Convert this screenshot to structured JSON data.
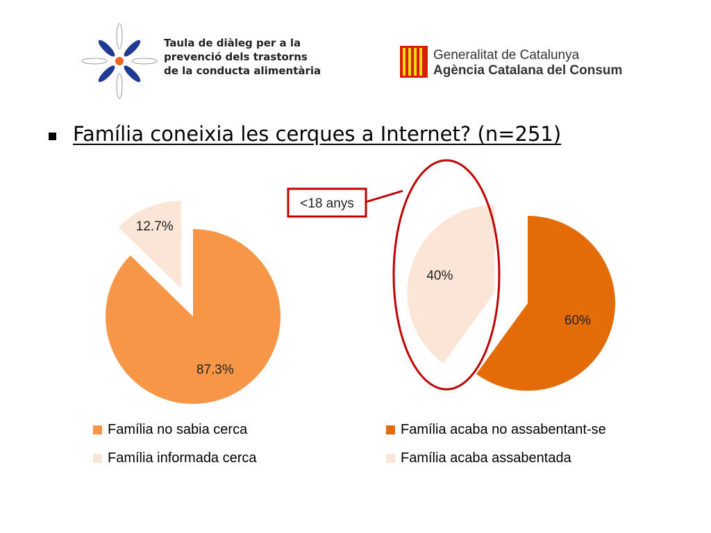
{
  "header": {
    "org_logo_text": "Taula de diàleg per a la\nprevenció dels trastorns\nde la conducta alimentària",
    "gov_name": "Generalitat de Catalunya",
    "agency_name": "Agència Catalana del Consum"
  },
  "heading": {
    "bullet": "▪",
    "title": "Família coneixia les cerques a Internet? (n=251)"
  },
  "colors": {
    "light_orange": "#f79646",
    "pale": "#fbe5d6",
    "dark_orange": "#e36c09",
    "highlight_red": "#c00000",
    "logo_blue": "#1f3a93",
    "logo_dot": "#f26522",
    "senyera_red": "#d81e05",
    "senyera_yellow": "#f9d616"
  },
  "chart_data": [
    {
      "type": "pie",
      "title": "",
      "slices": [
        {
          "label": "Família no sabia cerca",
          "value": 87.3,
          "value_label": "87.3%",
          "color": "#f79646",
          "exploded": false
        },
        {
          "label": "Família informada cerca",
          "value": 12.7,
          "value_label": "12.7%",
          "color": "#fbe5d6",
          "exploded": true
        }
      ],
      "legend": "bottom"
    },
    {
      "type": "pie",
      "title": "",
      "slices": [
        {
          "label": "Família acaba no assabentant-se",
          "value": 60,
          "value_label": "60%",
          "color": "#e36c09",
          "exploded": false
        },
        {
          "label": "Família acaba assabentada",
          "value": 40,
          "value_label": "40%",
          "color": "#fbe5d6",
          "exploded": true
        }
      ],
      "legend": "bottom",
      "annotation": {
        "text": "<18 anys",
        "target": "Família acaba assabentada"
      }
    }
  ]
}
